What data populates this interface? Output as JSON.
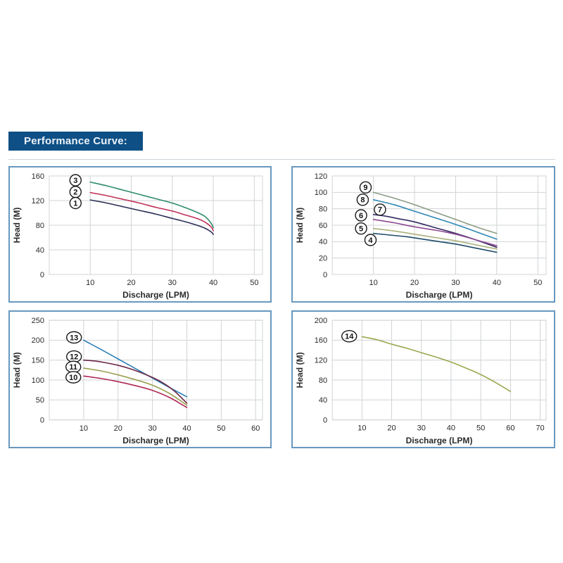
{
  "page": {
    "title": "Performance Curve:",
    "title_bg": "#0e4f85",
    "title_color": "#eaf3fb",
    "panel_border_color": "#6898bf",
    "grid_color": "#d0d3d6",
    "axis_text_color": "#2a2a2a"
  },
  "chart_data": [
    {
      "type": "line",
      "title": "",
      "xlabel": "Discharge (LPM)",
      "ylabel": "Head (M)",
      "xlim": [
        0,
        52
      ],
      "ylim": [
        0,
        160
      ],
      "xticks": [
        10,
        20,
        30,
        40,
        50
      ],
      "yticks": [
        0,
        40,
        80,
        120,
        160
      ],
      "grid": true,
      "series": [
        {
          "name": "3",
          "color": "#2e8c68",
          "points": [
            [
              10,
              150
            ],
            [
              14,
              144
            ],
            [
              18,
              137
            ],
            [
              22,
              130
            ],
            [
              26,
              123
            ],
            [
              30,
              116
            ],
            [
              33,
              109
            ],
            [
              36,
              101
            ],
            [
              38,
              94
            ],
            [
              39.5,
              83
            ],
            [
              40,
              76
            ]
          ],
          "label": {
            "text": "3",
            "x": 6.4,
            "y": 153
          }
        },
        {
          "name": "2",
          "color": "#c03058",
          "points": [
            [
              10,
              133
            ],
            [
              14,
              128
            ],
            [
              18,
              122
            ],
            [
              22,
              116
            ],
            [
              26,
              109
            ],
            [
              30,
              103
            ],
            [
              33,
              97
            ],
            [
              36,
              91
            ],
            [
              38,
              85
            ],
            [
              39.5,
              77
            ],
            [
              40,
              71
            ]
          ],
          "label": {
            "text": "2",
            "x": 6.4,
            "y": 134
          }
        },
        {
          "name": "1",
          "color": "#2a2d55",
          "points": [
            [
              10,
              121
            ],
            [
              14,
              116
            ],
            [
              18,
              110
            ],
            [
              22,
              104
            ],
            [
              26,
              98
            ],
            [
              30,
              91
            ],
            [
              33,
              86
            ],
            [
              36,
              80
            ],
            [
              38,
              75
            ],
            [
              39.5,
              69
            ],
            [
              40,
              65
            ]
          ],
          "label": {
            "text": "1",
            "x": 6.4,
            "y": 116
          }
        }
      ]
    },
    {
      "type": "line",
      "title": "",
      "xlabel": "Discharge (LPM)",
      "ylabel": "Head (M)",
      "xlim": [
        0,
        52
      ],
      "ylim": [
        0,
        120
      ],
      "xticks": [
        10,
        20,
        30,
        40,
        50
      ],
      "yticks": [
        0,
        20,
        40,
        60,
        80,
        100,
        120
      ],
      "grid": true,
      "series": [
        {
          "name": "9",
          "color": "#8c9c84",
          "points": [
            [
              10,
              100
            ],
            [
              15,
              93
            ],
            [
              20,
              85
            ],
            [
              25,
              76
            ],
            [
              30,
              67
            ],
            [
              35,
              58
            ],
            [
              40,
              50
            ]
          ],
          "label": {
            "text": "9",
            "x": 8.1,
            "y": 106
          }
        },
        {
          "name": "8",
          "color": "#2d87b5",
          "points": [
            [
              10,
              91
            ],
            [
              15,
              85
            ],
            [
              20,
              77
            ],
            [
              25,
              69
            ],
            [
              30,
              61
            ],
            [
              35,
              52
            ],
            [
              40,
              43
            ]
          ],
          "label": {
            "text": "8",
            "x": 7.4,
            "y": 91
          }
        },
        {
          "name": "7",
          "color": "#332a63",
          "points": [
            [
              10,
              73
            ],
            [
              13,
              71
            ],
            [
              16,
              68
            ],
            [
              20,
              64
            ],
            [
              25,
              57
            ],
            [
              30,
              50
            ],
            [
              35,
              42
            ],
            [
              40,
              33
            ]
          ],
          "label": {
            "text": "7",
            "x": 11.6,
            "y": 79
          }
        },
        {
          "name": "6",
          "color": "#8d4a92",
          "points": [
            [
              10,
              67
            ],
            [
              15,
              63
            ],
            [
              20,
              58
            ],
            [
              25,
              54
            ],
            [
              30,
              49
            ],
            [
              35,
              42
            ],
            [
              40,
              35
            ]
          ],
          "label": {
            "text": "6",
            "x": 7.0,
            "y": 72
          }
        },
        {
          "name": "5",
          "color": "#a9b27b",
          "points": [
            [
              10,
              56
            ],
            [
              15,
              53
            ],
            [
              20,
              49
            ],
            [
              25,
              45
            ],
            [
              30,
              41
            ],
            [
              35,
              36
            ],
            [
              40,
              31
            ]
          ],
          "label": {
            "text": "5",
            "x": 7.0,
            "y": 56
          }
        },
        {
          "name": "4",
          "color": "#1d4b68",
          "points": [
            [
              10,
              50
            ],
            [
              14,
              48
            ],
            [
              18,
              46
            ],
            [
              22,
              43
            ],
            [
              26,
              40
            ],
            [
              30,
              37
            ],
            [
              35,
              32
            ],
            [
              40,
              27
            ]
          ],
          "label": {
            "text": "4",
            "x": 9.3,
            "y": 42
          }
        }
      ]
    },
    {
      "type": "line",
      "title": "",
      "xlabel": "Discharge (LPM)",
      "ylabel": "Head (M)",
      "xlim": [
        0,
        62
      ],
      "ylim": [
        0,
        250
      ],
      "xticks": [
        10,
        20,
        30,
        40,
        50,
        60
      ],
      "yticks": [
        0,
        50,
        100,
        150,
        200,
        250
      ],
      "grid": true,
      "series": [
        {
          "name": "13",
          "color": "#2d7fb5",
          "points": [
            [
              10,
              200
            ],
            [
              15,
              177
            ],
            [
              20,
              153
            ],
            [
              25,
              129
            ],
            [
              30,
              105
            ],
            [
              35,
              81
            ],
            [
              40,
              58
            ]
          ],
          "label": {
            "text": "13",
            "x": 7.2,
            "y": 207
          }
        },
        {
          "name": "12",
          "color": "#6b2847",
          "points": [
            [
              10,
              150
            ],
            [
              13,
              148
            ],
            [
              16,
              144
            ],
            [
              20,
              137
            ],
            [
              24,
              127
            ],
            [
              28,
              114
            ],
            [
              32,
              98
            ],
            [
              36,
              75
            ],
            [
              40,
              42
            ]
          ],
          "label": {
            "text": "12",
            "x": 7.2,
            "y": 159
          }
        },
        {
          "name": "11",
          "color": "#9aa050",
          "points": [
            [
              10,
              130
            ],
            [
              15,
              123
            ],
            [
              20,
              113
            ],
            [
              25,
              101
            ],
            [
              30,
              87
            ],
            [
              35,
              66
            ],
            [
              40,
              37
            ]
          ],
          "label": {
            "text": "11",
            "x": 7.0,
            "y": 133
          }
        },
        {
          "name": "10",
          "color": "#b02853",
          "points": [
            [
              10,
              110
            ],
            [
              15,
              104
            ],
            [
              20,
              96
            ],
            [
              25,
              86
            ],
            [
              30,
              74
            ],
            [
              35,
              56
            ],
            [
              40,
              31
            ]
          ],
          "label": {
            "text": "10",
            "x": 7.0,
            "y": 107
          }
        }
      ]
    },
    {
      "type": "line",
      "title": "",
      "xlabel": "Discharge (LPM)",
      "ylabel": "Head (M)",
      "xlim": [
        0,
        72
      ],
      "ylim": [
        0,
        200
      ],
      "xticks": [
        10,
        20,
        30,
        40,
        50,
        60,
        70
      ],
      "yticks": [
        0,
        40,
        80,
        120,
        160,
        200
      ],
      "grid": true,
      "series": [
        {
          "name": "14",
          "color": "#9aa84f",
          "points": [
            [
              10,
              167
            ],
            [
              15,
              161
            ],
            [
              20,
              152
            ],
            [
              25,
              144
            ],
            [
              30,
              135
            ],
            [
              35,
              126
            ],
            [
              40,
              116
            ],
            [
              45,
              104
            ],
            [
              50,
              91
            ],
            [
              55,
              75
            ],
            [
              60,
              57
            ]
          ],
          "label": {
            "text": "14",
            "x": 5.7,
            "y": 168
          }
        }
      ]
    }
  ]
}
